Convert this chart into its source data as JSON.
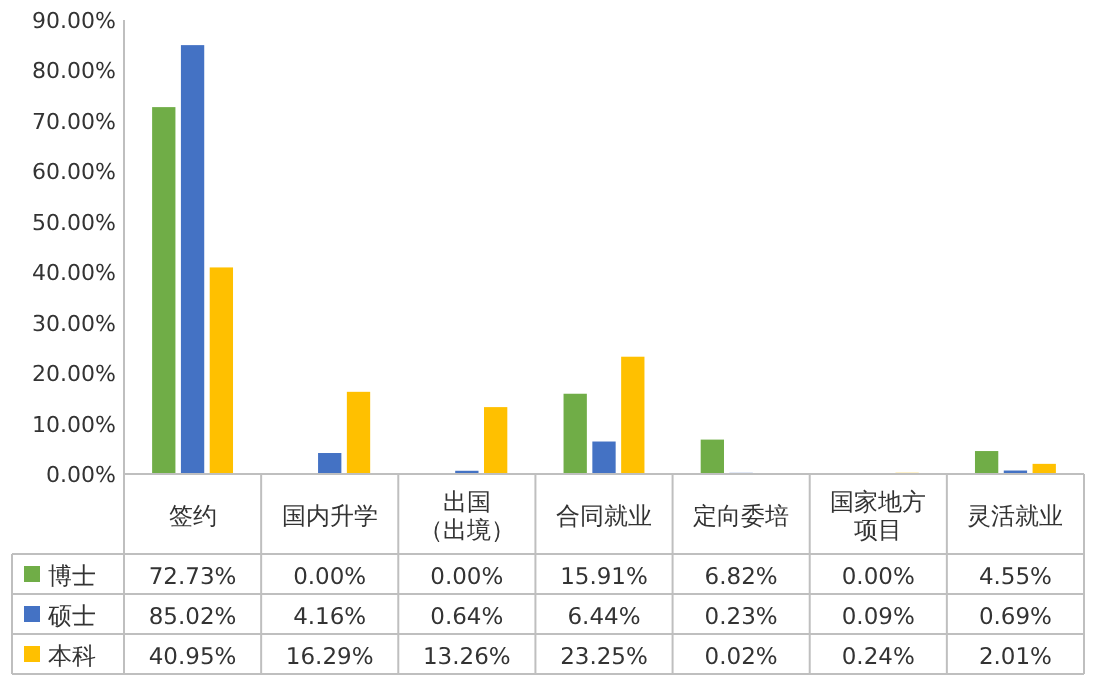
{
  "chart_data": {
    "type": "bar",
    "categories": [
      "签约",
      "国内升学",
      "出国（出境）",
      "合同就业",
      "定向委培",
      "国家地方项目",
      "灵活就业"
    ],
    "series": [
      {
        "name": "博士",
        "color": "#70ad47",
        "values": [
          72.73,
          0.0,
          0.0,
          15.91,
          6.82,
          0.0,
          4.55
        ],
        "value_labels": [
          "72.73%",
          "0.00%",
          "0.00%",
          "15.91%",
          "6.82%",
          "0.00%",
          "4.55%"
        ]
      },
      {
        "name": "硕士",
        "color": "#4472c4",
        "values": [
          85.02,
          4.16,
          0.64,
          6.44,
          0.23,
          0.09,
          0.69
        ],
        "value_labels": [
          "85.02%",
          "4.16%",
          "0.64%",
          "6.44%",
          "0.23%",
          "0.09%",
          "0.69%"
        ]
      },
      {
        "name": "本科",
        "color": "#ffc000",
        "values": [
          40.95,
          16.29,
          13.26,
          23.25,
          0.02,
          0.24,
          2.01
        ],
        "value_labels": [
          "40.95%",
          "16.29%",
          "13.26%",
          "23.25%",
          "0.02%",
          "0.24%",
          "2.01%"
        ]
      }
    ],
    "ylim": [
      0,
      90
    ],
    "yticks": [
      {
        "value": 0,
        "label": "0.00%"
      },
      {
        "value": 10,
        "label": "10.00%"
      },
      {
        "value": 20,
        "label": "20.00%"
      },
      {
        "value": 30,
        "label": "30.00%"
      },
      {
        "value": 40,
        "label": "40.00%"
      },
      {
        "value": 50,
        "label": "50.00%"
      },
      {
        "value": 60,
        "label": "60.00%"
      },
      {
        "value": 70,
        "label": "70.00%"
      },
      {
        "value": 80,
        "label": "80.00%"
      },
      {
        "value": 90,
        "label": "90.00%"
      }
    ],
    "grid": false,
    "legend": "bottom"
  }
}
